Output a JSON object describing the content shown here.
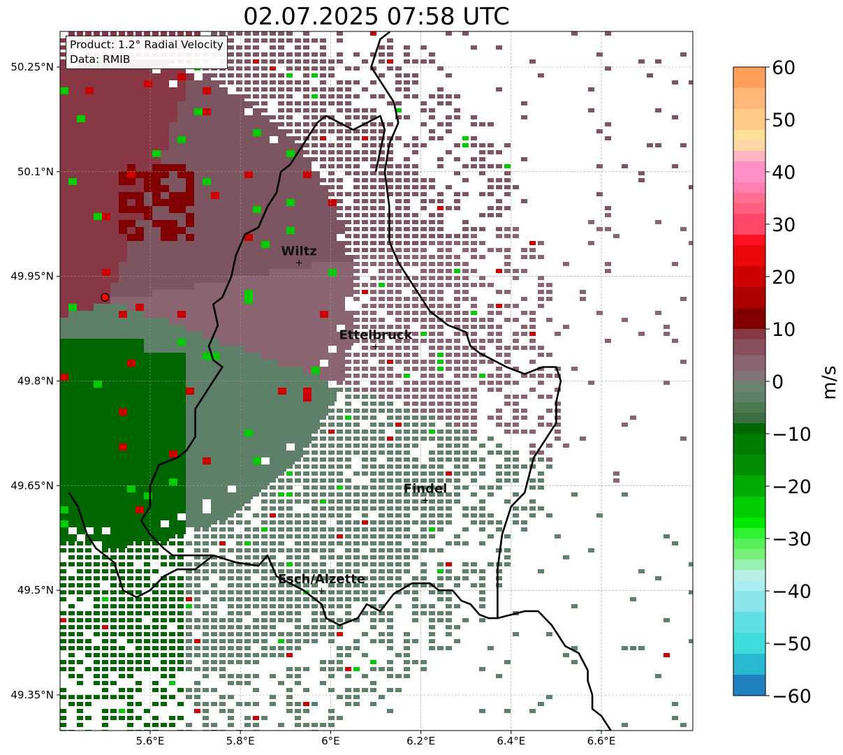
{
  "title": "02.07.2025 07:58 UTC",
  "info": {
    "product": "Product: 1.2° Radial Velocity",
    "data": "Data: RMIB"
  },
  "map": {
    "lon_range": [
      5.42,
      6.76
    ],
    "lat_range": [
      49.3,
      50.32
    ],
    "x_ticks": [
      {
        "value": 5.6,
        "label": "5.6°E"
      },
      {
        "value": 5.8,
        "label": "5.8°E"
      },
      {
        "value": 6.0,
        "label": "6°E"
      },
      {
        "value": 6.2,
        "label": "6.2°E"
      },
      {
        "value": 6.4,
        "label": "6.4°E"
      },
      {
        "value": 6.6,
        "label": "6.6°E"
      }
    ],
    "y_ticks": [
      {
        "value": 50.25,
        "label": "50.25°N"
      },
      {
        "value": 50.1,
        "label": "50.1°N"
      },
      {
        "value": 49.95,
        "label": "49.95°N"
      },
      {
        "value": 49.8,
        "label": "49.8°N"
      },
      {
        "value": 49.65,
        "label": "49.65°N"
      },
      {
        "value": 49.5,
        "label": "49.5°N"
      },
      {
        "value": 49.35,
        "label": "49.35°N"
      }
    ],
    "gridlines": true,
    "radar_site": {
      "lon": 5.5,
      "lat": 49.92
    },
    "cities": [
      {
        "name": "Wiltz",
        "lon": 5.93,
        "lat": 49.97
      },
      {
        "name": "Ettelbruck",
        "lon": 6.1,
        "lat": 49.85
      },
      {
        "name": "Findel",
        "lon": 6.21,
        "lat": 49.63
      },
      {
        "name": "Esch/Alzette",
        "lon": 5.98,
        "lat": 49.5
      }
    ],
    "border_lonlat": [
      [
        5.74,
        49.55
      ],
      [
        5.79,
        49.54
      ],
      [
        5.84,
        49.535
      ],
      [
        5.86,
        49.55
      ],
      [
        5.88,
        49.52
      ],
      [
        5.91,
        49.51
      ],
      [
        5.94,
        49.5
      ],
      [
        5.96,
        49.49
      ],
      [
        5.98,
        49.48
      ],
      [
        5.99,
        49.46
      ],
      [
        6.02,
        49.45
      ],
      [
        6.06,
        49.46
      ],
      [
        6.08,
        49.48
      ],
      [
        6.11,
        49.47
      ],
      [
        6.14,
        49.495
      ],
      [
        6.18,
        49.51
      ],
      [
        6.22,
        49.51
      ],
      [
        6.24,
        49.5
      ],
      [
        6.27,
        49.5
      ],
      [
        6.29,
        49.485
      ],
      [
        6.31,
        49.48
      ],
      [
        6.33,
        49.465
      ],
      [
        6.35,
        49.46
      ],
      [
        6.37,
        49.46
      ],
      [
        6.4,
        49.465
      ],
      [
        6.43,
        49.47
      ],
      [
        6.46,
        49.47
      ],
      [
        6.49,
        49.45
      ],
      [
        6.52,
        49.42
      ],
      [
        6.55,
        49.41
      ],
      [
        6.57,
        49.385
      ],
      [
        6.57,
        49.37
      ],
      [
        6.58,
        49.35
      ],
      [
        6.58,
        49.33
      ],
      [
        6.6,
        49.32
      ],
      [
        6.62,
        49.3
      ],
      [
        6.63,
        49.29
      ],
      [
        6.64,
        49.27
      ]
    ],
    "border_lux_east": [
      [
        6.37,
        49.46
      ],
      [
        6.37,
        49.53
      ],
      [
        6.38,
        49.58
      ],
      [
        6.4,
        49.62
      ],
      [
        6.43,
        49.64
      ],
      [
        6.45,
        49.69
      ],
      [
        6.48,
        49.72
      ],
      [
        6.5,
        49.74
      ],
      [
        6.5,
        49.77
      ],
      [
        6.51,
        49.8
      ],
      [
        6.5,
        49.82
      ],
      [
        6.47,
        49.82
      ],
      [
        6.43,
        49.81
      ],
      [
        6.39,
        49.82
      ],
      [
        6.33,
        49.84
      ],
      [
        6.31,
        49.85
      ],
      [
        6.3,
        49.87
      ],
      [
        6.26,
        49.88
      ],
      [
        6.22,
        49.9
      ],
      [
        6.2,
        49.92
      ],
      [
        6.17,
        49.95
      ],
      [
        6.15,
        49.97
      ],
      [
        6.13,
        50.0
      ],
      [
        6.13,
        50.05
      ],
      [
        6.12,
        50.1
      ],
      [
        6.13,
        50.14
      ],
      [
        6.15,
        50.17
      ],
      [
        6.14,
        50.2
      ],
      [
        6.12,
        50.22
      ],
      [
        6.09,
        50.25
      ],
      [
        6.11,
        50.29
      ],
      [
        6.13,
        50.3
      ],
      [
        6.14,
        50.32
      ]
    ],
    "border_lux_west": [
      [
        6.1,
        50.1
      ],
      [
        6.12,
        50.16
      ],
      [
        6.11,
        50.18
      ],
      [
        6.08,
        50.17
      ],
      [
        6.05,
        50.16
      ],
      [
        6.02,
        50.17
      ],
      [
        5.99,
        50.18
      ],
      [
        5.97,
        50.17
      ],
      [
        5.95,
        50.15
      ],
      [
        5.93,
        50.13
      ],
      [
        5.91,
        50.11
      ],
      [
        5.89,
        50.1
      ],
      [
        5.88,
        50.07
      ],
      [
        5.86,
        50.05
      ],
      [
        5.84,
        50.02
      ],
      [
        5.81,
        50.01
      ],
      [
        5.79,
        49.98
      ],
      [
        5.78,
        49.95
      ],
      [
        5.76,
        49.92
      ],
      [
        5.74,
        49.91
      ],
      [
        5.75,
        49.88
      ],
      [
        5.73,
        49.85
      ],
      [
        5.74,
        49.83
      ],
      [
        5.76,
        49.82
      ],
      [
        5.74,
        49.8
      ],
      [
        5.72,
        49.78
      ],
      [
        5.7,
        49.76
      ],
      [
        5.7,
        49.72
      ],
      [
        5.68,
        49.7
      ],
      [
        5.66,
        49.69
      ],
      [
        5.62,
        49.68
      ],
      [
        5.6,
        49.65
      ],
      [
        5.6,
        49.62
      ],
      [
        5.58,
        49.6
      ],
      [
        5.6,
        49.58
      ],
      [
        5.63,
        49.56
      ],
      [
        5.65,
        49.55
      ],
      [
        5.69,
        49.55
      ],
      [
        5.74,
        49.55
      ]
    ],
    "border_belgium_south": [
      [
        5.42,
        49.64
      ],
      [
        5.44,
        49.62
      ],
      [
        5.46,
        49.58
      ],
      [
        5.48,
        49.56
      ],
      [
        5.5,
        49.55
      ],
      [
        5.52,
        49.54
      ],
      [
        5.54,
        49.5
      ],
      [
        5.57,
        49.49
      ],
      [
        5.6,
        49.5
      ],
      [
        5.63,
        49.52
      ],
      [
        5.66,
        49.53
      ],
      [
        5.7,
        49.53
      ],
      [
        5.74,
        49.55
      ]
    ]
  },
  "colorbar": {
    "label": "m/s",
    "min": -60,
    "max": 60,
    "ticks": [
      {
        "value": 60,
        "label": "60"
      },
      {
        "value": 50,
        "label": "50"
      },
      {
        "value": 40,
        "label": "40"
      },
      {
        "value": 30,
        "label": "30"
      },
      {
        "value": 20,
        "label": "20"
      },
      {
        "value": 10,
        "label": "10"
      },
      {
        "value": 0,
        "label": "0"
      },
      {
        "value": -10,
        "label": "−10"
      },
      {
        "value": -20,
        "label": "−20"
      },
      {
        "value": -30,
        "label": "−30"
      },
      {
        "value": -40,
        "label": "−40"
      },
      {
        "value": -50,
        "label": "−50"
      },
      {
        "value": -60,
        "label": "−60"
      }
    ],
    "bands": [
      {
        "from": 56,
        "to": 60,
        "color": "#ffa05a"
      },
      {
        "from": 52,
        "to": 56,
        "color": "#ffb878"
      },
      {
        "from": 48,
        "to": 52,
        "color": "#ffcc88"
      },
      {
        "from": 46,
        "to": 48,
        "color": "#ffe098"
      },
      {
        "from": 44,
        "to": 46,
        "color": "#ffd6a6"
      },
      {
        "from": 42,
        "to": 44,
        "color": "#ffb6c0"
      },
      {
        "from": 38,
        "to": 42,
        "color": "#ff90c8"
      },
      {
        "from": 36,
        "to": 38,
        "color": "#ff80b0"
      },
      {
        "from": 34,
        "to": 36,
        "color": "#ff7090"
      },
      {
        "from": 32,
        "to": 34,
        "color": "#ff6080"
      },
      {
        "from": 28,
        "to": 32,
        "color": "#ff4868"
      },
      {
        "from": 26,
        "to": 28,
        "color": "#ff1020"
      },
      {
        "from": 22,
        "to": 26,
        "color": "#e80808"
      },
      {
        "from": 18,
        "to": 22,
        "color": "#cc0000"
      },
      {
        "from": 14,
        "to": 18,
        "color": "#aa0000"
      },
      {
        "from": 10,
        "to": 14,
        "color": "#800000"
      },
      {
        "from": 8,
        "to": 10,
        "color": "#883844"
      },
      {
        "from": 5,
        "to": 8,
        "color": "#8a5060"
      },
      {
        "from": 2,
        "to": 5,
        "color": "#8a6470"
      },
      {
        "from": 0,
        "to": 2,
        "color": "#82727a"
      },
      {
        "from": -2,
        "to": 0,
        "color": "#6a8470"
      },
      {
        "from": -4,
        "to": -2,
        "color": "#5e8068"
      },
      {
        "from": -6,
        "to": -4,
        "color": "#4c7a50"
      },
      {
        "from": -8,
        "to": -6,
        "color": "#3a6e40"
      },
      {
        "from": -10,
        "to": -8,
        "color": "#006600"
      },
      {
        "from": -14,
        "to": -10,
        "color": "#007a00"
      },
      {
        "from": -18,
        "to": -14,
        "color": "#008e00"
      },
      {
        "from": -22,
        "to": -18,
        "color": "#00aa00"
      },
      {
        "from": -26,
        "to": -22,
        "color": "#00cc00"
      },
      {
        "from": -28,
        "to": -26,
        "color": "#00e800"
      },
      {
        "from": -30,
        "to": -28,
        "color": "#30f030"
      },
      {
        "from": -32,
        "to": -30,
        "color": "#58f058"
      },
      {
        "from": -34,
        "to": -32,
        "color": "#78f078"
      },
      {
        "from": -36,
        "to": -34,
        "color": "#98f0b0"
      },
      {
        "from": -38,
        "to": -36,
        "color": "#b8f0e8"
      },
      {
        "from": -40,
        "to": -38,
        "color": "#aaeef0"
      },
      {
        "from": -44,
        "to": -40,
        "color": "#8ae6ea"
      },
      {
        "from": -48,
        "to": -44,
        "color": "#60e0e4"
      },
      {
        "from": -52,
        "to": -48,
        "color": "#40dcdc"
      },
      {
        "from": -56,
        "to": -52,
        "color": "#28b8d0"
      },
      {
        "from": -60,
        "to": -56,
        "color": "#2080c0"
      }
    ]
  },
  "colors": {
    "inbound_strong": "#006600",
    "inbound_weak": "#5e8068",
    "outbound_weak": "#8a6470",
    "outbound_mid": "#883844",
    "outbound_strong": "#800000",
    "radar_marker": "#ff0000"
  }
}
